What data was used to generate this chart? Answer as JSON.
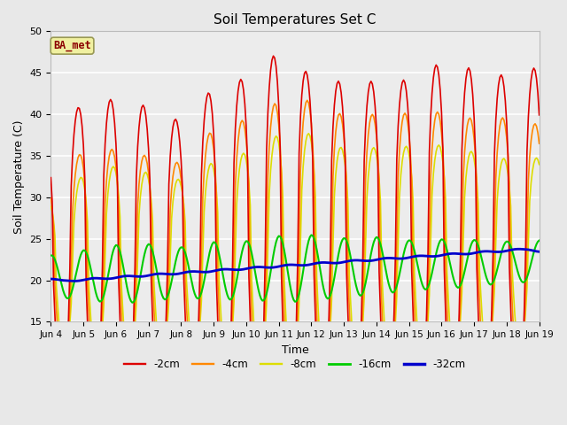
{
  "title": "Soil Temperatures Set C",
  "xlabel": "Time",
  "ylabel": "Soil Temperature (C)",
  "ylim": [
    15,
    50
  ],
  "annotation": "BA_met",
  "legend_labels": [
    "-2cm",
    "-4cm",
    "-8cm",
    "-16cm",
    "-32cm"
  ],
  "line_colors": [
    "#dd0000",
    "#ff8800",
    "#dddd00",
    "#00cc00",
    "#0000cc"
  ],
  "line_widths": [
    1.2,
    1.2,
    1.2,
    1.5,
    2.0
  ],
  "bg_color": "#e8e8e8",
  "plot_bg": "#ececec",
  "tick_labels": [
    "Jun 4",
    "Jun 5",
    "Jun 6",
    "Jun 7",
    "Jun 8",
    "Jun 9",
    "Jun 10",
    "Jun 11",
    "Jun 12",
    "Jun 13",
    "Jun 14",
    "Jun 15",
    "Jun 16",
    "Jun 17",
    "Jun 18",
    "Jun 19"
  ],
  "yticks": [
    15,
    20,
    25,
    30,
    35,
    40,
    45,
    50
  ]
}
